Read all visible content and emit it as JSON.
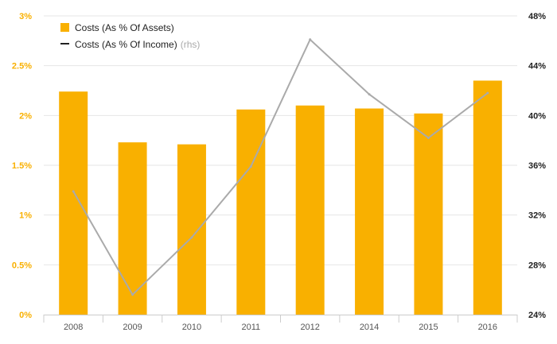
{
  "chart_data": {
    "type": "bar",
    "categories": [
      "2008",
      "2009",
      "2010",
      "2011",
      "2012",
      "2014",
      "2015",
      "2016"
    ],
    "series": [
      {
        "name": "Costs (As % Of Assets)",
        "type": "bar",
        "axis": "left",
        "color": "#F9B000",
        "values": [
          2.24,
          1.73,
          1.71,
          2.06,
          2.1,
          2.07,
          2.02,
          2.35
        ]
      },
      {
        "name": "Costs (As % Of Income)",
        "type": "line",
        "axis": "right",
        "color": "#AAAAAA",
        "values": [
          33.9,
          25.6,
          30.2,
          35.9,
          46.1,
          41.7,
          38.2,
          41.8
        ]
      }
    ],
    "legend": {
      "position": "top-left",
      "items": [
        {
          "label": "Costs (As % Of Assets)",
          "suffix": ""
        },
        {
          "label": "Costs (As % Of Income)",
          "suffix": "(rhs)"
        }
      ]
    },
    "y_left": {
      "lim": [
        0,
        3
      ],
      "ticks": [
        0,
        0.5,
        1,
        1.5,
        2,
        2.5,
        3
      ],
      "tick_labels": [
        "0%",
        "0.5%",
        "1%",
        "1.5%",
        "2%",
        "2.5%",
        "3%"
      ],
      "label_color": "#F9B000"
    },
    "y_right": {
      "lim": [
        24,
        48
      ],
      "ticks": [
        24,
        28,
        32,
        36,
        40,
        44,
        48
      ],
      "tick_labels": [
        "24%",
        "28%",
        "32%",
        "36%",
        "40%",
        "44%",
        "48%"
      ]
    },
    "grid": true,
    "colors": {
      "grid": "#E6E6E6",
      "axis": "#CCCCCC"
    }
  }
}
